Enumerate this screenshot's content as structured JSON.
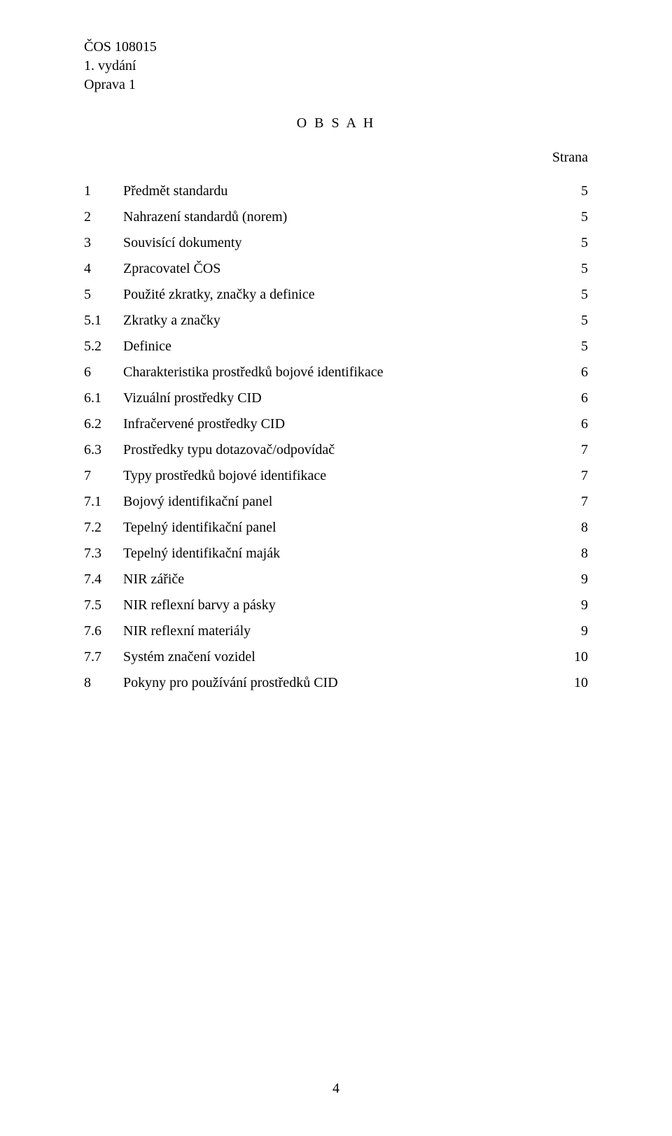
{
  "header": {
    "line1": "ČOS 108015",
    "line2": "1. vydání",
    "line3": "Oprava 1"
  },
  "title": "O B S A H",
  "strana_label": "Strana",
  "toc": [
    {
      "num": "1",
      "label": "Předmět standardu",
      "page": "5"
    },
    {
      "num": "2",
      "label": "Nahrazení standardů (norem)",
      "page": "5"
    },
    {
      "num": "3",
      "label": "Souvisící dokumenty",
      "page": "5"
    },
    {
      "num": "4",
      "label": "Zpracovatel ČOS",
      "page": "5"
    },
    {
      "num": "5",
      "label": "Použité zkratky, značky a definice",
      "page": "5"
    },
    {
      "num": "5.1",
      "label": "Zkratky a značky",
      "page": "5"
    },
    {
      "num": "5.2",
      "label": "Definice",
      "page": "5"
    },
    {
      "num": "6",
      "label": "Charakteristika prostředků bojové identifikace",
      "page": "6"
    },
    {
      "num": "6.1",
      "label": "Vizuální prostředky CID",
      "page": "6"
    },
    {
      "num": "6.2",
      "label": "Infračervené prostředky CID",
      "page": "6"
    },
    {
      "num": "6.3",
      "label": "Prostředky typu dotazovač/odpovídač",
      "page": "7"
    },
    {
      "num": "7",
      "label": "Typy prostředků bojové identifikace",
      "page": "7"
    },
    {
      "num": "7.1",
      "label": "Bojový identifikační panel",
      "page": "7"
    },
    {
      "num": "7.2",
      "label": "Tepelný identifikační panel",
      "page": "8"
    },
    {
      "num": "7.3",
      "label": "Tepelný identifikační maják",
      "page": "8"
    },
    {
      "num": "7.4",
      "label": "NIR zářiče",
      "page": "9"
    },
    {
      "num": "7.5",
      "label": "NIR reflexní barvy a pásky",
      "page": "9"
    },
    {
      "num": "7.6",
      "label": "NIR reflexní materiály",
      "page": "9"
    },
    {
      "num": "7.7",
      "label": "Systém značení vozidel",
      "page": "10"
    },
    {
      "num": "8",
      "label": "Pokyny pro používání prostředků CID",
      "page": "10"
    }
  ],
  "page_number": "4"
}
